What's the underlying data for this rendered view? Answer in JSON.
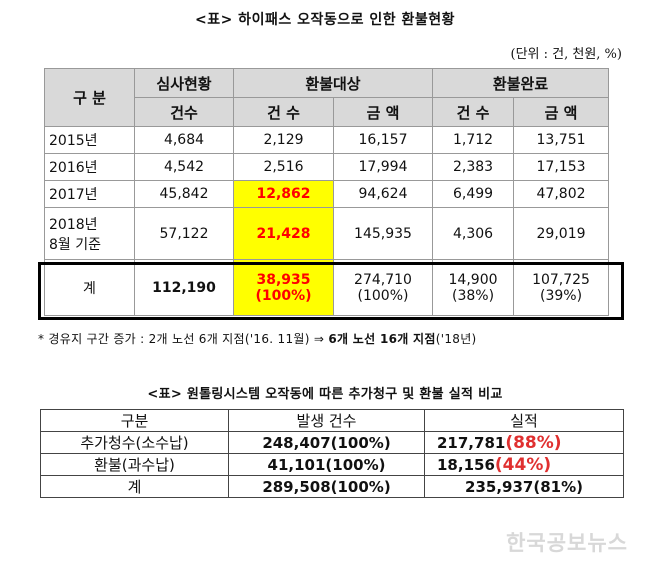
{
  "title1": "<표> 하이패스 오작동으로 인한 환불현황",
  "unit": "(단위 : 건, 천원, %)",
  "t1": {
    "h_gubun": "구  분",
    "h_review": "심사현황",
    "h_target": "환불대상",
    "h_done": "환불완료",
    "h_count": "건수",
    "h_count2": "건 수",
    "h_amount": "금 액",
    "rows": [
      {
        "year": "2015년",
        "review": "4,684",
        "t_cnt": "2,129",
        "t_amt": "16,157",
        "d_cnt": "1,712",
        "d_amt": "13,751"
      },
      {
        "year": "2016년",
        "review": "4,542",
        "t_cnt": "2,516",
        "t_amt": "17,994",
        "d_cnt": "2,383",
        "d_amt": "17,153"
      },
      {
        "year": "2017년",
        "review": "45,842",
        "t_cnt": "12,862",
        "t_amt": "94,624",
        "d_cnt": "6,499",
        "d_amt": "47,802"
      },
      {
        "year1": "2018년",
        "year2": "8월 기준",
        "review": "57,122",
        "t_cnt": "21,428",
        "t_amt": "145,935",
        "d_cnt": "4,306",
        "d_amt": "29,019"
      }
    ],
    "total": {
      "label": "계",
      "review": "112,190",
      "t_cnt": "38,935",
      "t_cnt_pct": "(100%)",
      "t_amt": "274,710",
      "t_amt_pct": "(100%)",
      "d_cnt": "14,900",
      "d_cnt_pct": "(38%)",
      "d_amt": "107,725",
      "d_amt_pct": "(39%)"
    }
  },
  "note": {
    "prefix": "* 경유지 구간 증가 : 2개 노선 6개 지점('16. 11월) ⇒ ",
    "bold": "6개 노선 16개 지점",
    "suffix": "('18년)"
  },
  "title2": "<표> 원톨링시스템 오작동에 따른 추가청구 및 환불 실적 비교",
  "t2": {
    "h_gubun": "구분",
    "h_count": "발생 건수",
    "h_result": "실적",
    "rows": [
      {
        "label": "추가청수(소수납)",
        "count": "248,407(100%)",
        "result": "217,781",
        "pct": "(88%)"
      },
      {
        "label": "환불(과수납)",
        "count": "41,101(100%)",
        "result": "18,156",
        "pct": "(44%)"
      }
    ],
    "total": {
      "label": "계",
      "count": "289,508(100%)",
      "result": "235,937(81%)"
    }
  },
  "watermark": "한국공보뉴스"
}
